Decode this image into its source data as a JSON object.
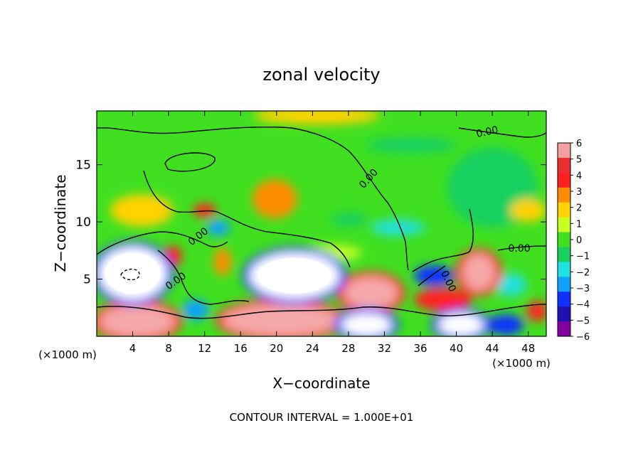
{
  "chart_data": {
    "type": "heatmap",
    "title": "zonal velocity",
    "xlabel": "X−coordinate",
    "ylabel": "Z−coordinate",
    "x_unit_left": "(×1000 m)",
    "x_unit_right": "(×1000 m)",
    "footer": "CONTOUR INTERVAL = 1.000E+01",
    "xlim": [
      0,
      50
    ],
    "ylim": [
      0,
      19.7
    ],
    "x_ticks": [
      4,
      8,
      12,
      16,
      20,
      24,
      28,
      32,
      36,
      40,
      44,
      48
    ],
    "x_tick_labels": [
      "4",
      "8",
      "12",
      "16",
      "20",
      "24",
      "28",
      "32",
      "36",
      "40",
      "44",
      "48"
    ],
    "y_ticks": [
      5,
      10,
      15
    ],
    "y_tick_labels": [
      "5",
      "10",
      "15"
    ],
    "colorbar": {
      "values": [
        6,
        5,
        4,
        3,
        2,
        1,
        0,
        -1,
        -2,
        -3,
        -4,
        -5,
        -6
      ],
      "labels": [
        "6",
        "5",
        "4",
        "3",
        "2",
        "1",
        "0",
        "−1",
        "−2",
        "−3",
        "−4",
        "−5",
        "−6"
      ],
      "colors": [
        "#f2a0a0",
        "#e83030",
        "#ff2020",
        "#ff8c00",
        "#ffd200",
        "#c8ff20",
        "#40e020",
        "#18d060",
        "#20e0e0",
        "#10a0ff",
        "#1030ff",
        "#2010b0",
        "#8000a0"
      ]
    },
    "contour_labels": [
      {
        "text": "0.00",
        "x": 43.5,
        "y": 17.6,
        "angle": 12
      },
      {
        "text": "0.00",
        "x": 30.5,
        "y": 13.6,
        "angle": 48
      },
      {
        "text": "0.00",
        "x": 11.5,
        "y": 8.5,
        "angle": 38
      },
      {
        "text": "0.00",
        "x": 9.0,
        "y": 4.6,
        "angle": 35
      },
      {
        "text": "0.00",
        "x": 38.8,
        "y": 4.7,
        "angle": -65
      },
      {
        "text": "0.00",
        "x": 47.0,
        "y": 7.4,
        "angle": 0
      }
    ],
    "features": [
      {
        "x": 4.0,
        "y": 5.5,
        "rx": 3.8,
        "ry": 2.3,
        "value": -6
      },
      {
        "x": 22.0,
        "y": 5.3,
        "rx": 5.0,
        "ry": 2.0,
        "value": -6
      },
      {
        "x": 30.5,
        "y": 3.8,
        "rx": 3.0,
        "ry": 1.4,
        "value": 5
      },
      {
        "x": 20.5,
        "y": 1.4,
        "rx": 6.5,
        "ry": 1.4,
        "value": 5
      },
      {
        "x": 4.5,
        "y": 1.3,
        "rx": 4.2,
        "ry": 1.4,
        "value": 5
      },
      {
        "x": 42.5,
        "y": 5.6,
        "rx": 1.8,
        "ry": 1.6,
        "value": 5
      },
      {
        "x": 30.0,
        "y": 1.0,
        "rx": 2.8,
        "ry": 1.0,
        "value": -5
      },
      {
        "x": 40.5,
        "y": 1.0,
        "rx": 2.5,
        "ry": 1.0,
        "value": -5
      },
      {
        "x": 37.5,
        "y": 5.3,
        "rx": 2.2,
        "ry": 0.9,
        "value": -4
      },
      {
        "x": 38.5,
        "y": 3.2,
        "rx": 3.2,
        "ry": 1.0,
        "value": 4
      },
      {
        "x": 49.0,
        "y": 2.2,
        "rx": 1.2,
        "ry": 0.9,
        "value": 4
      },
      {
        "x": 19.8,
        "y": 12.0,
        "rx": 2.5,
        "ry": 1.7,
        "value": 3
      },
      {
        "x": 12.0,
        "y": 11.0,
        "rx": 1.3,
        "ry": 0.6,
        "value": 4
      },
      {
        "x": 8.5,
        "y": 7.0,
        "rx": 1.0,
        "ry": 0.9,
        "value": 4
      },
      {
        "x": 13.5,
        "y": 9.5,
        "rx": 1.3,
        "ry": 0.7,
        "value": -3
      },
      {
        "x": 11.0,
        "y": 2.3,
        "rx": 1.5,
        "ry": 0.9,
        "value": -3
      },
      {
        "x": 33.5,
        "y": 9.5,
        "rx": 3.0,
        "ry": 0.7,
        "value": -2
      },
      {
        "x": 28.0,
        "y": 10.2,
        "rx": 2.0,
        "ry": 0.6,
        "value": -1
      },
      {
        "x": 14.0,
        "y": 6.5,
        "rx": 1.0,
        "ry": 1.2,
        "value": 3
      },
      {
        "x": 46.0,
        "y": 4.5,
        "rx": 1.8,
        "ry": 1.0,
        "value": -2
      },
      {
        "x": 45.5,
        "y": 1.0,
        "rx": 2.0,
        "ry": 0.9,
        "value": -4
      },
      {
        "x": 24.5,
        "y": 19.3,
        "rx": 7.0,
        "ry": 0.8,
        "value": 2
      },
      {
        "x": 35.0,
        "y": 16.7,
        "rx": 5.0,
        "ry": 0.7,
        "value": -1
      },
      {
        "x": 44.0,
        "y": 13.0,
        "rx": 5.0,
        "ry": 3.5,
        "value": -1
      },
      {
        "x": 5.0,
        "y": 11.0,
        "rx": 3.5,
        "ry": 1.4,
        "value": 2
      },
      {
        "x": 48.0,
        "y": 11.0,
        "rx": 2.0,
        "ry": 1.0,
        "value": 2
      },
      {
        "x": 26.0,
        "y": 7.3,
        "rx": 3.5,
        "ry": 0.7,
        "value": 1
      }
    ]
  }
}
